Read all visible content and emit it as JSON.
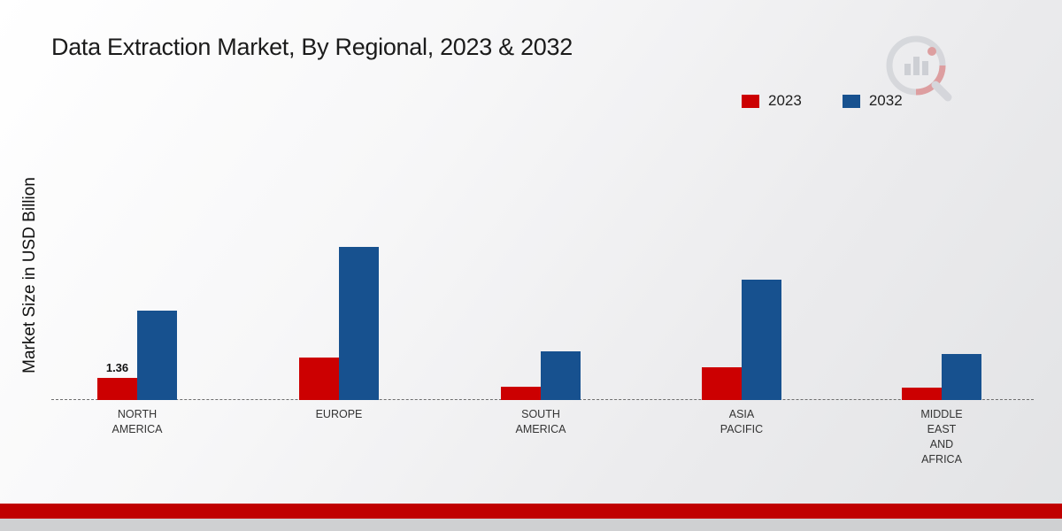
{
  "chart_data": {
    "type": "bar",
    "title": "Data Extraction Market, By Regional, 2023 & 2032",
    "xlabel": "",
    "ylabel": "Market Size in USD Billion",
    "categories": [
      "NORTH AMERICA",
      "EUROPE",
      "SOUTH AMERICA",
      "ASIA PACIFIC",
      "MIDDLE EAST AND AFRICA"
    ],
    "series": [
      {
        "name": "2023",
        "color": "#cc0001",
        "values": [
          1.36,
          2.6,
          0.8,
          2.0,
          0.75
        ],
        "value_labels": [
          "1.36",
          "",
          "",
          "",
          ""
        ]
      },
      {
        "name": "2032",
        "color": "#17518f",
        "values": [
          5.5,
          9.4,
          3.0,
          7.4,
          2.85
        ],
        "value_labels": [
          "",
          "",
          "",
          "",
          ""
        ]
      }
    ],
    "ylim": [
      0,
      17
    ],
    "grid": false,
    "legend_position": "top-right",
    "axis_style": "dashed-baseline-only"
  },
  "footer": {
    "accent_color": "#c00000"
  }
}
